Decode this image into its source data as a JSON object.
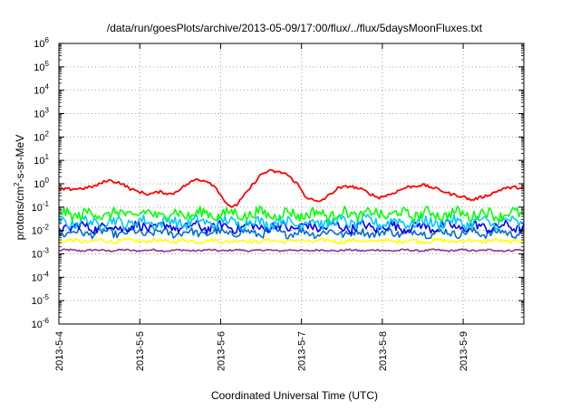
{
  "chart_data": {
    "type": "line",
    "title": "/data/run/goesPlots/archive/2013-05-09/17:00/flux/../flux/5daysMoonFluxes.txt",
    "xlabel": "Coordinated Universal Time (UTC)",
    "ylabel": {
      "base": "protons/cm",
      "sup": "2",
      "rest": "-s-sr-MeV"
    },
    "yscale": "log",
    "ylim_exponent": [
      -6,
      6
    ],
    "y_ticks": [
      {
        "base": "10",
        "exp": "-6"
      },
      {
        "base": "10",
        "exp": "-5"
      },
      {
        "base": "10",
        "exp": "-4"
      },
      {
        "base": "10",
        "exp": "-3"
      },
      {
        "base": "10",
        "exp": "-2"
      },
      {
        "base": "10",
        "exp": "-1"
      },
      {
        "base": "10",
        "exp": "0"
      },
      {
        "base": "10",
        "exp": "1"
      },
      {
        "base": "10",
        "exp": "2"
      },
      {
        "base": "10",
        "exp": "3"
      },
      {
        "base": "10",
        "exp": "4"
      },
      {
        "base": "10",
        "exp": "5"
      },
      {
        "base": "10",
        "exp": "6"
      }
    ],
    "x_tick_labels": [
      "2013-5-4",
      "2013-5-5",
      "2013-5-6",
      "2013-5-7",
      "2013-5-8",
      "2013-5-9"
    ],
    "x_range_days": [
      0,
      5.75
    ],
    "grid": true,
    "legend": "none",
    "series": [
      {
        "color": "#ff0000",
        "level_log10": -0.25,
        "noise": 0.12,
        "points": [
          [
            0.0,
            -0.25
          ],
          [
            0.3,
            -0.2
          ],
          [
            0.45,
            -0.1
          ],
          [
            0.6,
            0.15
          ],
          [
            0.75,
            0.05
          ],
          [
            0.9,
            -0.25
          ],
          [
            1.1,
            -0.45
          ],
          [
            1.25,
            -0.35
          ],
          [
            1.4,
            -0.45
          ],
          [
            1.55,
            -0.1
          ],
          [
            1.7,
            0.2
          ],
          [
            1.85,
            0.1
          ],
          [
            1.95,
            -0.2
          ],
          [
            2.1,
            -1.0
          ],
          [
            2.2,
            -0.9
          ],
          [
            2.35,
            -0.25
          ],
          [
            2.5,
            0.4
          ],
          [
            2.6,
            0.55
          ],
          [
            2.8,
            0.45
          ],
          [
            2.95,
            0.0
          ],
          [
            3.05,
            -0.55
          ],
          [
            3.2,
            -0.8
          ],
          [
            3.3,
            -0.6
          ],
          [
            3.45,
            -0.2
          ],
          [
            3.6,
            -0.1
          ],
          [
            3.75,
            -0.25
          ],
          [
            3.95,
            -0.6
          ],
          [
            4.1,
            -0.45
          ],
          [
            4.3,
            -0.15
          ],
          [
            4.5,
            -0.05
          ],
          [
            4.7,
            -0.25
          ],
          [
            4.85,
            -0.45
          ],
          [
            5.0,
            -0.55
          ],
          [
            5.1,
            -0.7
          ],
          [
            5.3,
            -0.5
          ],
          [
            5.5,
            -0.2
          ],
          [
            5.65,
            -0.15
          ],
          [
            5.75,
            -0.2
          ]
        ]
      },
      {
        "color": "#00ff00",
        "level_log10": -1.3,
        "noise": 0.35
      },
      {
        "color": "#00c8ff",
        "level_log10": -1.65,
        "noise": 0.35
      },
      {
        "color": "#0000ff",
        "level_log10": -1.85,
        "noise": 0.3
      },
      {
        "color": "#006ec8",
        "level_log10": -2.1,
        "noise": 0.25
      },
      {
        "color": "#ffff00",
        "level_log10": -2.45,
        "noise": 0.12
      },
      {
        "color": "#8c3296",
        "level_log10": -2.85,
        "noise": 0.06
      }
    ]
  }
}
